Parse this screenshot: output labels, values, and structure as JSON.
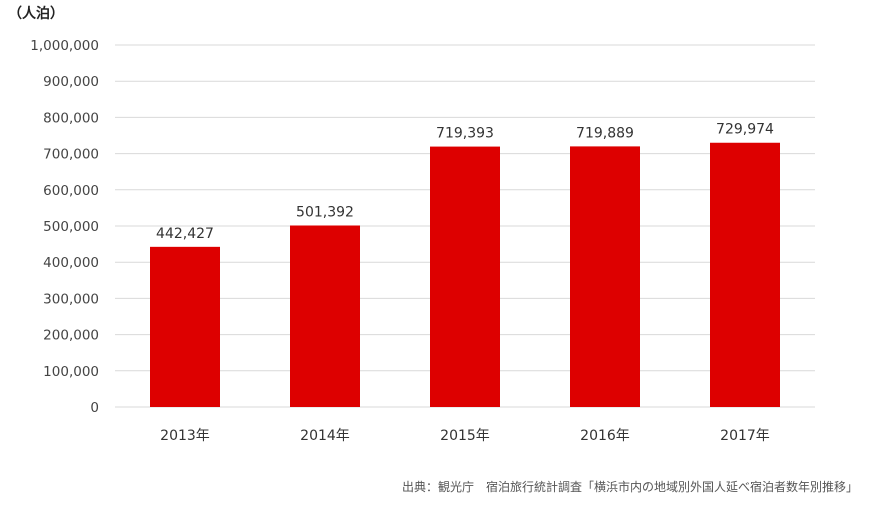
{
  "chart_data": {
    "type": "bar",
    "unit_label": "（人泊）",
    "categories": [
      "2013年",
      "2014年",
      "2015年",
      "2016年",
      "2017年"
    ],
    "values": [
      442427,
      501392,
      719393,
      719889,
      729974
    ],
    "value_labels": [
      "442,427",
      "501,392",
      "719,393",
      "719,889",
      "729,974"
    ],
    "ylim": [
      0,
      1000000
    ],
    "yticks": [
      0,
      100000,
      200000,
      300000,
      400000,
      500000,
      600000,
      700000,
      800000,
      900000,
      1000000
    ],
    "ytick_labels": [
      "0",
      "100,000",
      "200,000",
      "300,000",
      "400,000",
      "500,000",
      "600,000",
      "700,000",
      "800,000",
      "900,000",
      "1,000,000"
    ],
    "grid": true,
    "bar_color": "#dd0000",
    "grid_color": "#d9d9d9",
    "source": "出典：観光庁　宿泊旅行統計調査「横浜市内の地域別外国人延べ宿泊者数年別推移」"
  }
}
